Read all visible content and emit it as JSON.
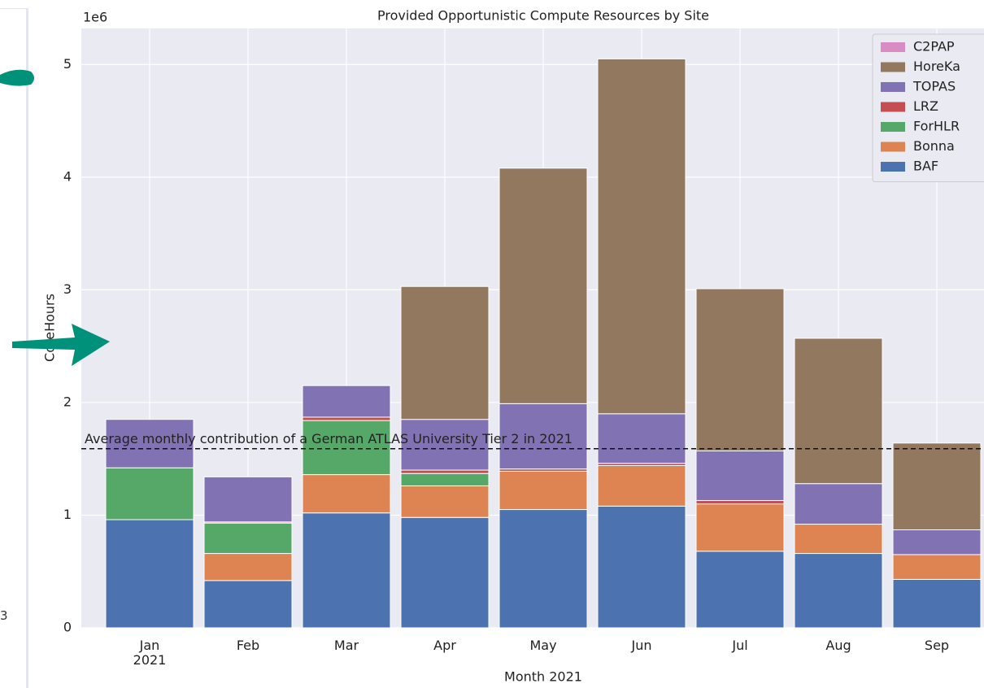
{
  "chart_data": {
    "type": "stacked_bar",
    "title": "Provided Opportunistic Compute Resources by Site",
    "x_label": "Month 2021",
    "y_label": "CoreHours",
    "y_offset_label": "1e6",
    "categories": [
      "Jan\n2021",
      "Feb",
      "Mar",
      "Apr",
      "May",
      "Jun",
      "Jul",
      "Aug",
      "Sep"
    ],
    "series": [
      {
        "name": "BAF",
        "color": "#4c72b0",
        "values": [
          0.96,
          0.42,
          1.02,
          0.98,
          1.05,
          1.08,
          0.68,
          0.66,
          0.43
        ]
      },
      {
        "name": "Bonna",
        "color": "#dd8452",
        "values": [
          0,
          0.24,
          0.34,
          0.28,
          0.34,
          0.36,
          0.42,
          0.26,
          0.22
        ]
      },
      {
        "name": "ForHLR",
        "color": "#55a868",
        "values": [
          0.46,
          0.27,
          0.48,
          0.11,
          0,
          0,
          0,
          0,
          0
        ]
      },
      {
        "name": "LRZ",
        "color": "#c44e52",
        "values": [
          0,
          0.01,
          0.03,
          0.03,
          0.02,
          0.02,
          0.03,
          0,
          0
        ]
      },
      {
        "name": "TOPAS",
        "color": "#8172b3",
        "values": [
          0.43,
          0.4,
          0.28,
          0.45,
          0.58,
          0.44,
          0.44,
          0.36,
          0.22
        ]
      },
      {
        "name": "HoreKa",
        "color": "#937860",
        "values": [
          0,
          0,
          0,
          1.18,
          2.09,
          3.15,
          1.44,
          1.29,
          0.77
        ]
      },
      {
        "name": "C2PAP",
        "color": "#da8bc3",
        "values": [
          0,
          0,
          0,
          0,
          0,
          0,
          0,
          0,
          0
        ]
      }
    ],
    "reference_line": {
      "value": 1.59,
      "label": "Average monthly contribution of a German ATLAS University Tier 2 in 2021"
    },
    "ylim": [
      0,
      5.32
    ],
    "yticks": [
      0,
      1,
      2,
      3,
      4,
      5
    ],
    "grid": true,
    "legend": "upper right"
  },
  "sidebar": {
    "text": "3"
  }
}
